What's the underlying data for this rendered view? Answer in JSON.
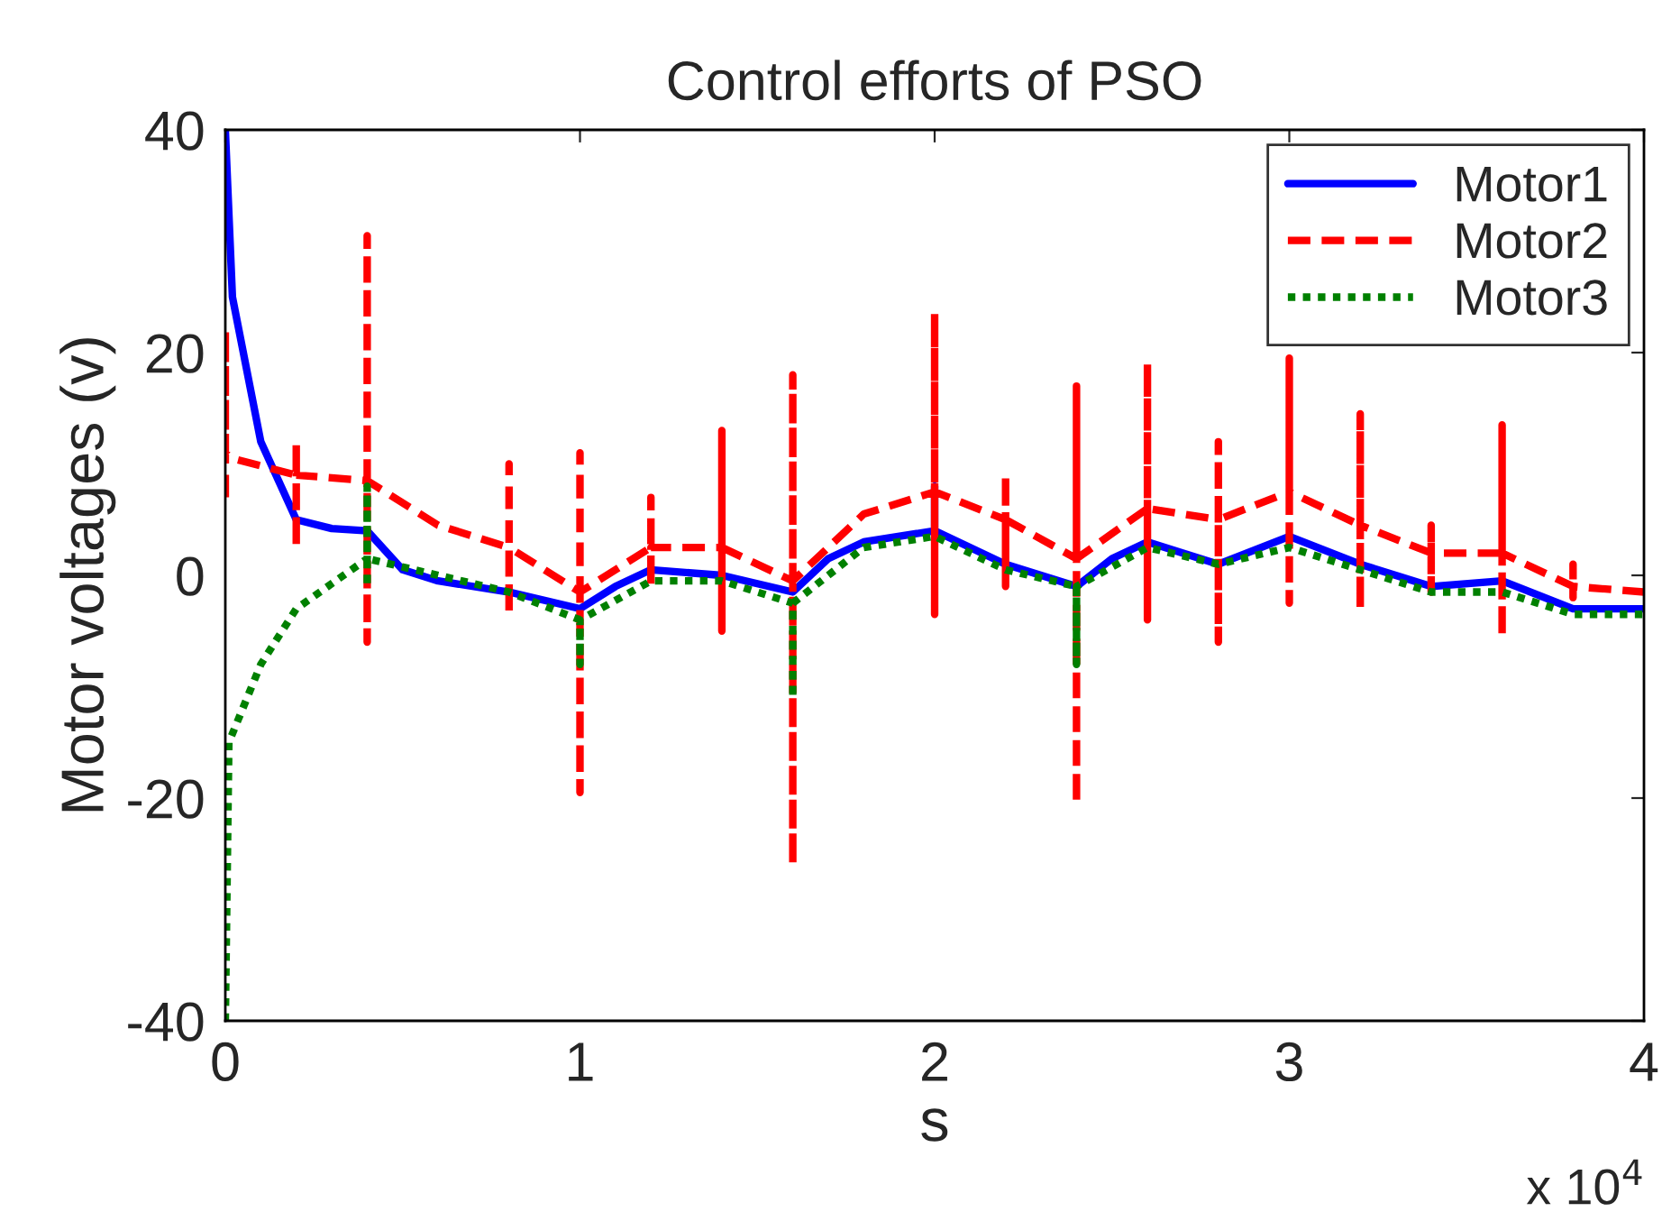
{
  "chart_data": {
    "type": "line",
    "title": "Control efforts of PSO",
    "xlabel": "s",
    "ylabel": "Motor voltages (v)",
    "annotations": [
      "x 10$^{4}$"
    ],
    "xlim": [
      0,
      4
    ],
    "xticks": [
      0,
      1,
      2,
      3,
      4
    ],
    "ylim": [
      -40,
      40
    ],
    "yticks": [
      -40,
      -20,
      0,
      20,
      40
    ],
    "grid": false,
    "legend": "top right",
    "marker": "none",
    "series": [
      {
        "name": "Motor1",
        "color": "#0000ff",
        "line_style": "solid",
        "x": [
          0,
          0.02,
          0.1,
          0.2,
          0.3,
          0.4,
          0.5,
          0.6,
          0.8,
          1.0,
          1.1,
          1.2,
          1.4,
          1.6,
          1.7,
          1.8,
          2.0,
          2.0,
          2.0,
          2.2,
          2.4,
          2.5,
          2.6,
          2.8,
          3.0,
          3.2,
          3.4,
          3.6,
          3.8,
          4.0
        ],
        "values": [
          40,
          25,
          12,
          5,
          4.2,
          4,
          0.5,
          -0.5,
          -1.5,
          -3,
          -1,
          0.5,
          0,
          -1.5,
          1.5,
          3,
          4,
          8,
          4,
          1,
          -1,
          1.5,
          3,
          1,
          3.5,
          1,
          -1,
          -0.5,
          -3,
          -3
        ]
      },
      {
        "name": "Motor2",
        "color": "#ff0000",
        "line_style": "dashed",
        "x": [
          0,
          0,
          0,
          0.02,
          0.2,
          0.2,
          0.2,
          0.2,
          0.4,
          0.4,
          0.4,
          0.4,
          0.6,
          0.8,
          0.8,
          0.8,
          0.8,
          1.0,
          1.0,
          1.0,
          1.0,
          1.2,
          1.2,
          1.2,
          1.2,
          1.4,
          1.4,
          1.4,
          1.4,
          1.6,
          1.6,
          1.6,
          1.6,
          1.8,
          2.0,
          2.0,
          2.0,
          2.0,
          2.2,
          2.2,
          2.2,
          2.2,
          2.4,
          2.4,
          2.4,
          2.4,
          2.6,
          2.6,
          2.6,
          2.6,
          2.8,
          2.8,
          2.8,
          2.8,
          3.0,
          3.0,
          3.0,
          3.0,
          3.2,
          3.2,
          3.2,
          3.2,
          3.4,
          3.4,
          3.4,
          3.4,
          3.6,
          3.6,
          3.6,
          3.6,
          3.8,
          3.8,
          3.8,
          3.8,
          4.0
        ],
        "values": [
          7,
          22,
          11,
          10.5,
          9,
          12,
          2.5,
          9,
          8.5,
          30.5,
          -6,
          8.5,
          4.5,
          2.5,
          10,
          -3.5,
          2.5,
          -1.5,
          11,
          -19.5,
          -1.5,
          2.5,
          7,
          -1,
          2.5,
          2.5,
          13,
          -5,
          2.5,
          -0.5,
          18,
          -26,
          -0.5,
          5.5,
          7.5,
          23.5,
          -3.5,
          7.5,
          5,
          9,
          -1,
          5,
          1.5,
          17,
          -20.5,
          1.5,
          6,
          19,
          -4,
          6,
          5,
          12,
          -6,
          5,
          7.5,
          19.5,
          -2.5,
          7.5,
          4.5,
          14.5,
          -3,
          4.5,
          2,
          4.5,
          -1.5,
          2,
          2,
          13.5,
          -5.5,
          2,
          -1,
          1,
          -2,
          -1,
          -1.5
        ]
      },
      {
        "name": "Motor3",
        "color": "#008000",
        "line_style": "dotted",
        "x": [
          0,
          0.01,
          0.1,
          0.2,
          0.4,
          0.4,
          0.4,
          0.4,
          0.6,
          0.8,
          1.0,
          1.0,
          1.0,
          1.2,
          1.4,
          1.6,
          1.6,
          1.6,
          1.8,
          2.0,
          2.2,
          2.4,
          2.4,
          2.4,
          2.6,
          2.8,
          3.0,
          3.2,
          3.4,
          3.6,
          3.8,
          4.0
        ],
        "values": [
          -40,
          -15,
          -8,
          -3,
          1.5,
          8,
          -1,
          1.5,
          0,
          -1.5,
          -4,
          -8,
          -4,
          -0.5,
          -0.5,
          -2.5,
          -11,
          -2.5,
          2.5,
          3.5,
          0.5,
          -1,
          -8,
          -1,
          2.5,
          1,
          2.5,
          0.5,
          -1.5,
          -1.5,
          -3.5,
          -3.5
        ]
      }
    ]
  }
}
